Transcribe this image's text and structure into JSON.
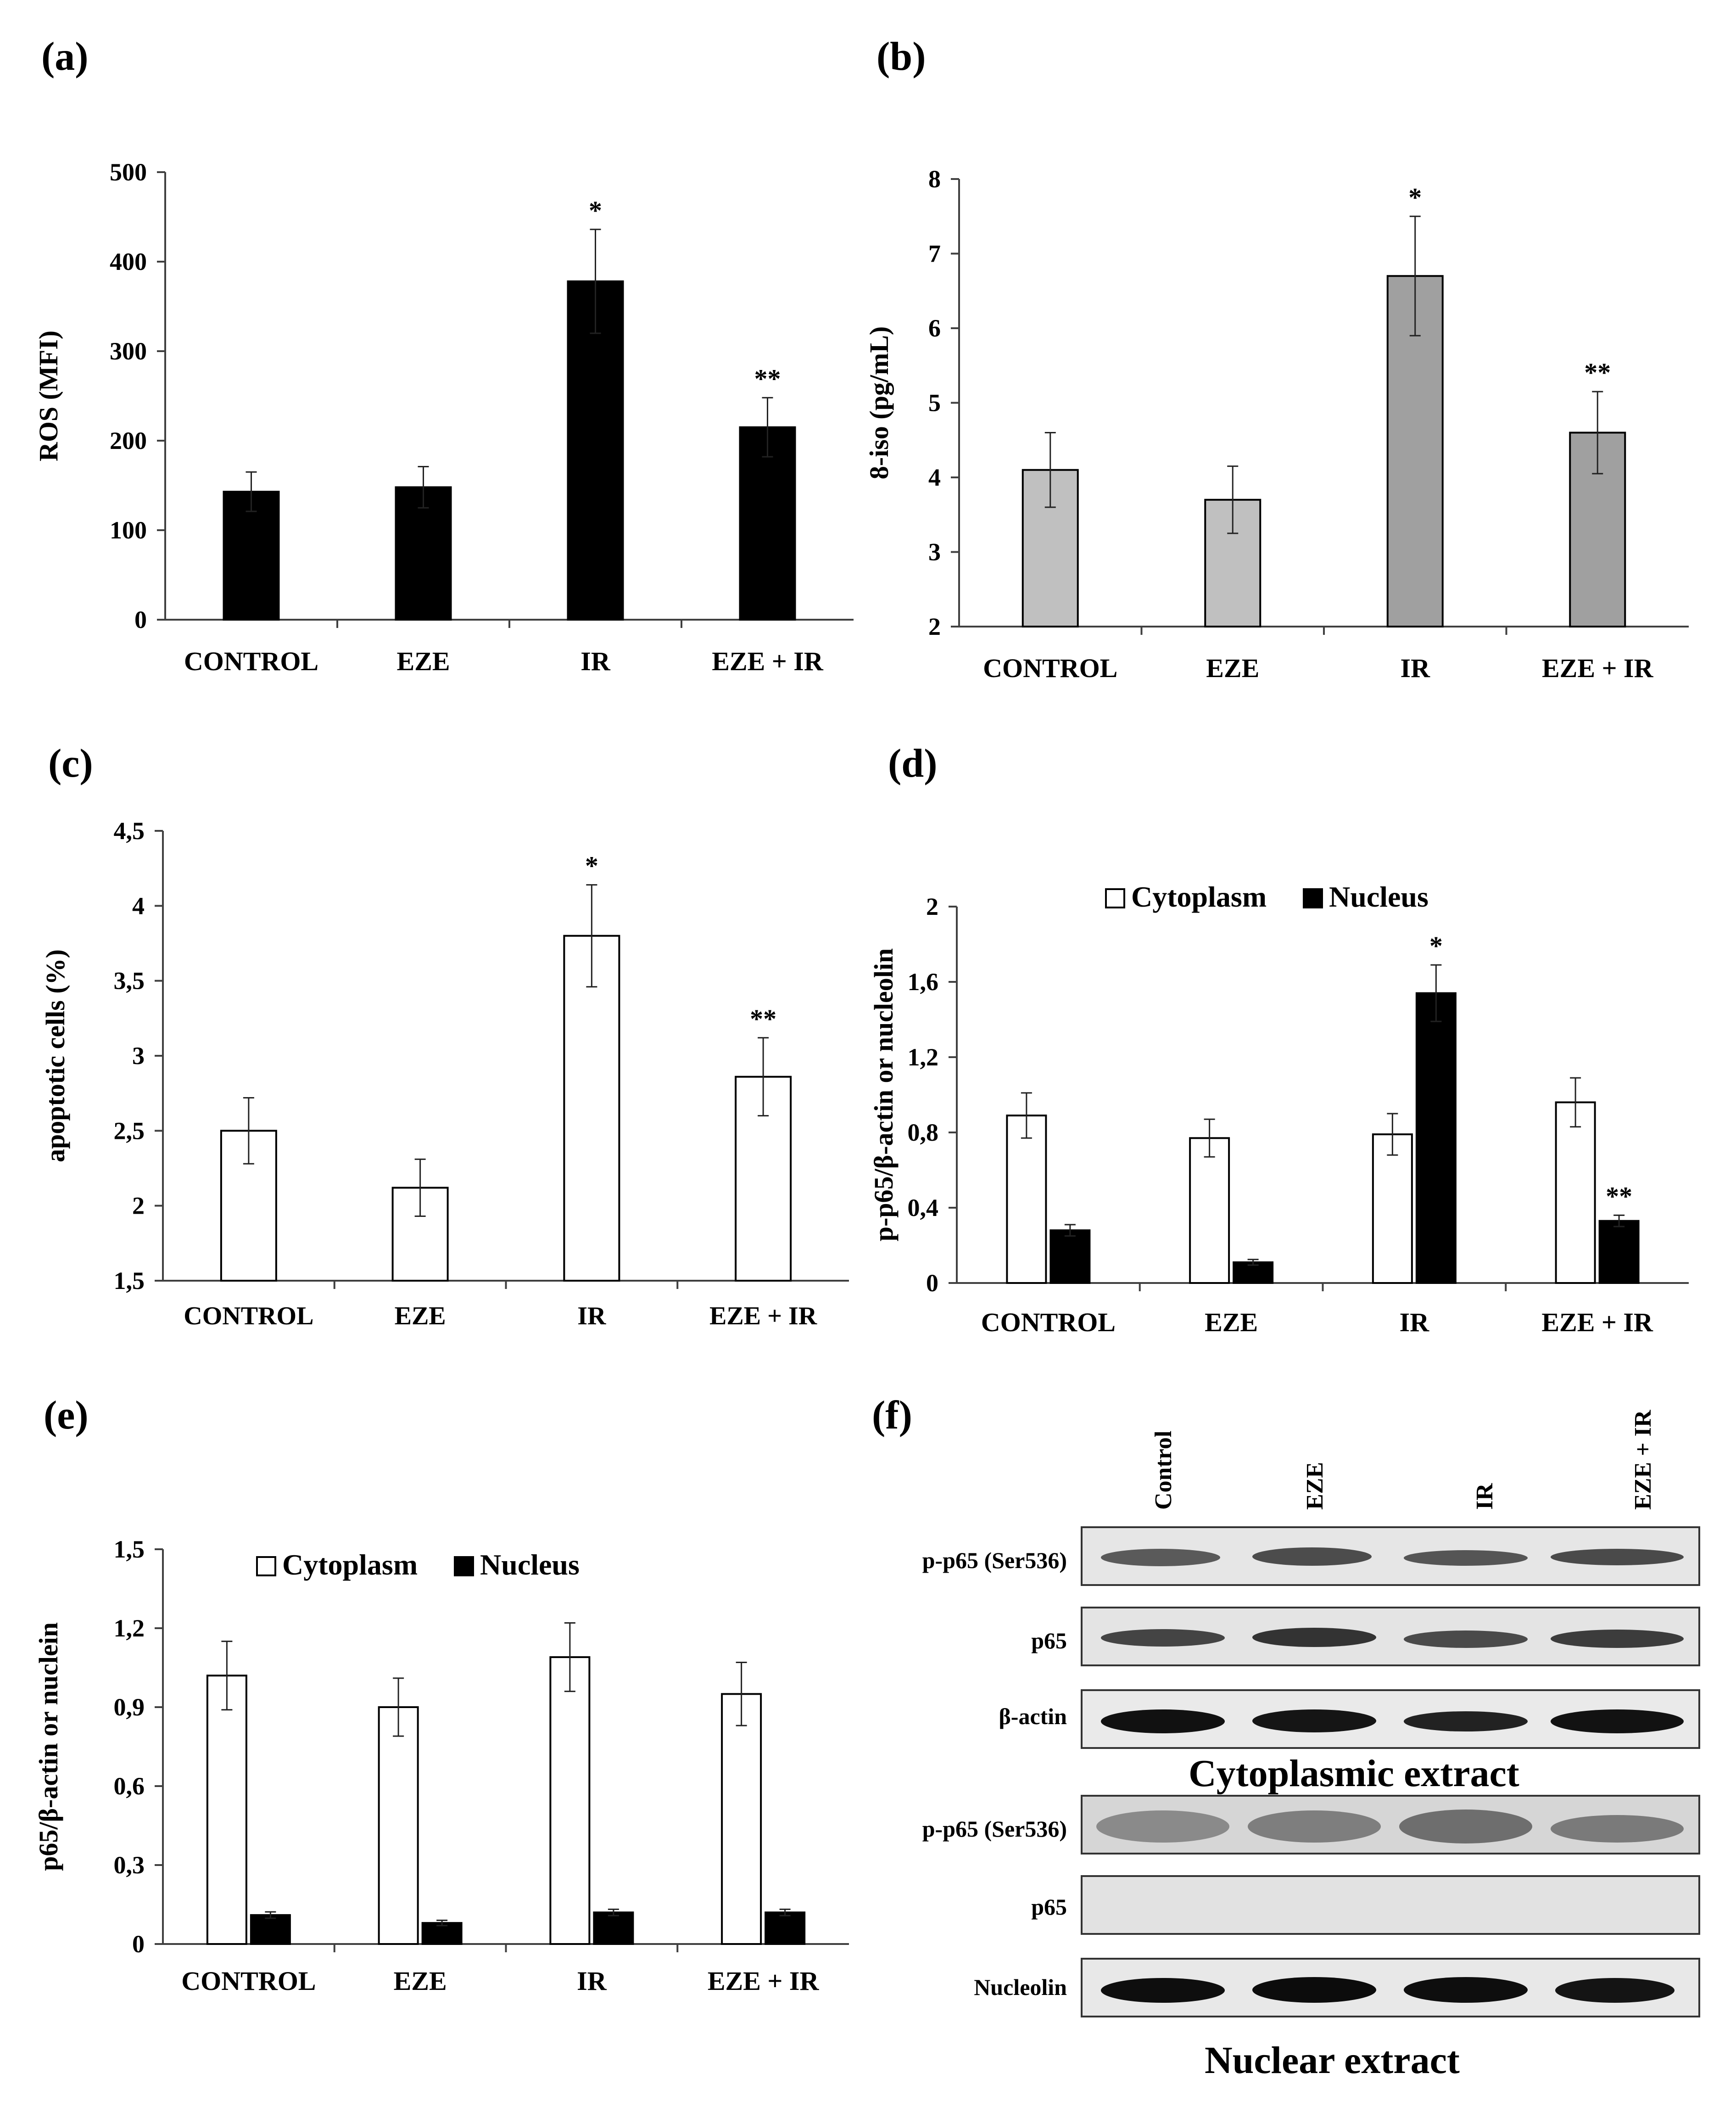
{
  "panels": {
    "a": "(a)",
    "b": "(b)",
    "c": "(c)",
    "d": "(d)",
    "e": "(e)",
    "f": "(f)"
  },
  "colors": {
    "black_bar": "#000000",
    "light_gray_bar": "#c0c0c0",
    "dark_gray_bar": "#a0a0a0",
    "white_bar": "#ffffff",
    "axis": "#404040"
  },
  "chart_data": [
    {
      "id": "a",
      "type": "bar",
      "ylabel": "ROS (MFI)",
      "categories": [
        "CONTROL",
        "EZE",
        "IR",
        "EZE + IR"
      ],
      "ylim": [
        0,
        500
      ],
      "yticks": [
        "0",
        "100",
        "200",
        "300",
        "400",
        "500"
      ],
      "ytick_values": [
        0,
        100,
        200,
        300,
        400,
        500
      ],
      "series": [
        {
          "name": "ROS",
          "color": "#000000",
          "values": [
            143,
            148,
            378,
            215
          ],
          "errors": [
            22,
            23,
            58,
            33
          ],
          "annotations": [
            "",
            "",
            "*",
            "**"
          ]
        }
      ]
    },
    {
      "id": "b",
      "type": "bar",
      "ylabel": "8-iso (pg/mL)",
      "categories": [
        "CONTROL",
        "EZE",
        "IR",
        "EZE + IR"
      ],
      "ylim": [
        2,
        8
      ],
      "yticks": [
        "2",
        "3",
        "4",
        "5",
        "6",
        "7",
        "8"
      ],
      "ytick_values": [
        2,
        3,
        4,
        5,
        6,
        7,
        8
      ],
      "series": [
        {
          "name": "8-iso",
          "colors": [
            "#c0c0c0",
            "#c0c0c0",
            "#a0a0a0",
            "#a0a0a0"
          ],
          "values": [
            4.1,
            3.7,
            6.7,
            4.6
          ],
          "errors": [
            0.5,
            0.45,
            0.8,
            0.55
          ],
          "annotations": [
            "",
            "",
            "*",
            "**"
          ]
        }
      ]
    },
    {
      "id": "c",
      "type": "bar",
      "ylabel": "apoptotic cells (%)",
      "categories": [
        "CONTROL",
        "EZE",
        "IR",
        "EZE + IR"
      ],
      "ylim": [
        1.5,
        4.5
      ],
      "yticks": [
        "1,5",
        "2",
        "2,5",
        "3",
        "3,5",
        "4",
        "4,5"
      ],
      "ytick_values": [
        1.5,
        2,
        2.5,
        3,
        3.5,
        4,
        4.5
      ],
      "series": [
        {
          "name": "apoptotic",
          "color": "#ffffff",
          "values": [
            2.5,
            2.12,
            3.8,
            2.86
          ],
          "errors": [
            0.22,
            0.19,
            0.34,
            0.26
          ],
          "annotations": [
            "",
            "",
            "*",
            "**"
          ]
        }
      ]
    },
    {
      "id": "d",
      "type": "bar",
      "ylabel": "p-p65/β-actin or nucleolin",
      "categories": [
        "CONTROL",
        "EZE",
        "IR",
        "EZE + IR"
      ],
      "ylim": [
        0,
        2
      ],
      "yticks": [
        "0",
        "0,4",
        "0,8",
        "1,2",
        "1,6",
        "2"
      ],
      "ytick_values": [
        0,
        0.4,
        0.8,
        1.2,
        1.6,
        2.0
      ],
      "legend": [
        "Cytoplasm",
        "Nucleus"
      ],
      "series": [
        {
          "name": "Cytoplasm",
          "color": "#ffffff",
          "values": [
            0.89,
            0.77,
            0.79,
            0.96
          ],
          "errors": [
            0.12,
            0.1,
            0.11,
            0.13
          ],
          "annotations": [
            "",
            "",
            "",
            ""
          ]
        },
        {
          "name": "Nucleus",
          "color": "#000000",
          "values": [
            0.28,
            0.11,
            1.54,
            0.33
          ],
          "errors": [
            0.03,
            0.015,
            0.15,
            0.03
          ],
          "annotations": [
            "",
            "",
            "*",
            "**"
          ]
        }
      ]
    },
    {
      "id": "e",
      "type": "bar",
      "ylabel": "p65/β-actin or nuclein",
      "categories": [
        "CONTROL",
        "EZE",
        "IR",
        "EZE + IR"
      ],
      "ylim": [
        0,
        1.5
      ],
      "yticks": [
        "0",
        "0,3",
        "0,6",
        "0,9",
        "1,2",
        "1,5"
      ],
      "ytick_values": [
        0,
        0.3,
        0.6,
        0.9,
        1.2,
        1.5
      ],
      "legend": [
        "Cytoplasm",
        "Nucleus"
      ],
      "series": [
        {
          "name": "Cytoplasm",
          "color": "#ffffff",
          "values": [
            1.02,
            0.9,
            1.09,
            0.95
          ],
          "errors": [
            0.13,
            0.11,
            0.13,
            0.12
          ],
          "annotations": [
            "",
            "",
            "",
            ""
          ]
        },
        {
          "name": "Nucleus",
          "color": "#000000",
          "values": [
            0.11,
            0.08,
            0.12,
            0.12
          ],
          "errors": [
            0.012,
            0.01,
            0.012,
            0.012
          ],
          "annotations": [
            "",
            "",
            "",
            ""
          ]
        }
      ]
    }
  ],
  "blot": {
    "lanes": [
      "Control",
      "EZE",
      "IR",
      "EZE + IR"
    ],
    "cytoplasmic_rows": [
      "p-p65 (Ser536)",
      "p65",
      "β-actin"
    ],
    "nuclear_rows": [
      "p-p65 (Ser536)",
      "p65",
      "Nucleolin"
    ],
    "cytoplasmic_caption": "Cytoplasmic extract",
    "nuclear_caption": "Nuclear extract"
  }
}
